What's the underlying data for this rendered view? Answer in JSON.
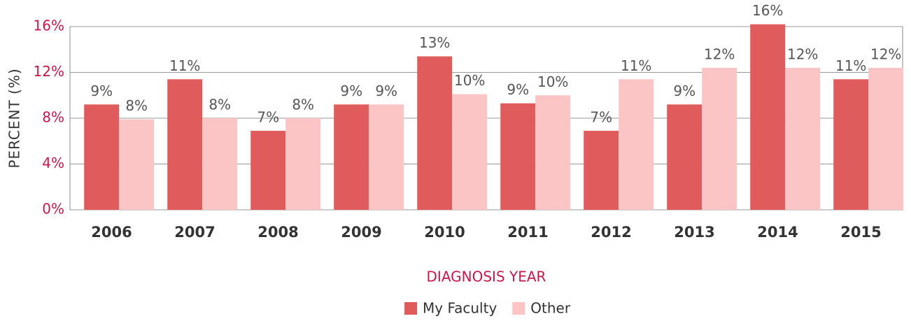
{
  "chart_data": {
    "type": "bar",
    "x_label": "DIAGNOSIS YEAR",
    "y_label": "PERCENT (%)",
    "categories": [
      "2006",
      "2007",
      "2008",
      "2009",
      "2010",
      "2011",
      "2012",
      "2013",
      "2014",
      "2015"
    ],
    "series": [
      {
        "name": "My Faculty",
        "color": "#e05c5c",
        "values": [
          9.2,
          11.4,
          6.9,
          9.2,
          13.4,
          9.3,
          6.9,
          9.2,
          16.2,
          11.4
        ],
        "value_labels": [
          "9%",
          "11%",
          "7%",
          "9%",
          "13%",
          "9%",
          "7%",
          "9%",
          "16%",
          "11%"
        ]
      },
      {
        "name": "Other",
        "color": "#fcc5c5",
        "values": [
          7.9,
          8.0,
          8.0,
          9.2,
          10.1,
          10.0,
          11.4,
          12.4,
          12.4,
          12.4
        ],
        "value_labels": [
          "8%",
          "8%",
          "8%",
          "9%",
          "10%",
          "10%",
          "11%",
          "12%",
          "12%",
          "12%"
        ]
      }
    ],
    "ylim": [
      0,
      16
    ],
    "yticks": [
      {
        "value": 0,
        "label": "0%"
      },
      {
        "value": 4,
        "label": "4%"
      },
      {
        "value": 8,
        "label": "8%"
      },
      {
        "value": 12,
        "label": "12%"
      },
      {
        "value": 16,
        "label": "16%"
      }
    ],
    "grid": true,
    "legend": "bottom"
  }
}
